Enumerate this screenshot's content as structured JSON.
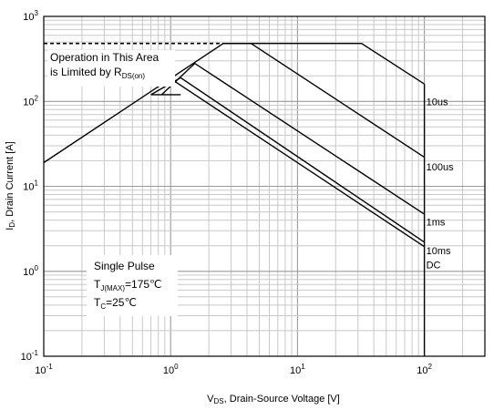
{
  "chart_data": {
    "type": "line",
    "xscale": "log",
    "yscale": "log",
    "xlim": [
      0.1,
      300
    ],
    "ylim": [
      0.1,
      1000
    ],
    "grid": true,
    "xlabel": {
      "main": "V",
      "sub": "DS",
      "rest": ", Drain-Source Voltage  [V]"
    },
    "ylabel": {
      "main": "I",
      "sub": "D",
      "rest": ", Drain Current [A]"
    },
    "x_ticks": [
      {
        "base": "10",
        "exp": "-1",
        "value": 0.1
      },
      {
        "base": "10",
        "exp": "0",
        "value": 1
      },
      {
        "base": "10",
        "exp": "1",
        "value": 10
      },
      {
        "base": "10",
        "exp": "2",
        "value": 100
      }
    ],
    "y_ticks": [
      {
        "base": "10",
        "exp": "-1",
        "value": 0.1
      },
      {
        "base": "10",
        "exp": "0",
        "value": 1
      },
      {
        "base": "10",
        "exp": "1",
        "value": 10
      },
      {
        "base": "10",
        "exp": "2",
        "value": 100
      },
      {
        "base": "10",
        "exp": "3",
        "value": 1000
      }
    ],
    "annotations": {
      "rdson": {
        "line1": "Operation in This Area",
        "line2_main": "is Limited by R",
        "line2_sub": "DS(on)"
      },
      "conditions": {
        "line1": "Single Pulse",
        "line2_main": "T",
        "line2_sub": "J(MAX)",
        "line2_rest": "=175℃",
        "line3_main": "T",
        "line3_sub": "C",
        "line3_rest": "=25℃"
      }
    },
    "package_limit": {
      "x": [
        0.1,
        2.6
      ],
      "y": [
        480,
        480
      ]
    },
    "series": [
      {
        "name": "10us",
        "x": [
          0.1,
          2.6,
          32,
          100
        ],
        "y": [
          19,
          480,
          480,
          160
        ]
      },
      {
        "name": "100us",
        "x": [
          2.6,
          4.3,
          100
        ],
        "y": [
          480,
          480,
          22
        ]
      },
      {
        "name": "1ms",
        "x": [
          0.85,
          1.55,
          100
        ],
        "y": [
          120,
          280,
          4.7
        ]
      },
      {
        "name": "10ms",
        "x": [
          0.7,
          1.2,
          100
        ],
        "y": [
          120,
          190,
          2.2
        ]
      },
      {
        "name": "DC",
        "x": [
          1.0,
          100
        ],
        "y": [
          185,
          1.95
        ]
      },
      {
        "name": "",
        "x": [
          0.7,
          1.2
        ],
        "y": [
          120,
          120
        ]
      },
      {
        "name": "",
        "x": [
          100,
          100
        ],
        "y": [
          0.1,
          160
        ]
      }
    ],
    "series_labels": [
      {
        "text": "10us",
        "at_x": 100,
        "at_y": 100
      },
      {
        "text": "100us",
        "at_x": 100,
        "at_y": 17
      },
      {
        "text": "1ms",
        "at_x": 100,
        "at_y": 3.8
      },
      {
        "text": "10ms",
        "at_x": 100,
        "at_y": 1.75
      },
      {
        "text": "DC",
        "at_x": 100,
        "at_y": 1.2
      }
    ]
  }
}
